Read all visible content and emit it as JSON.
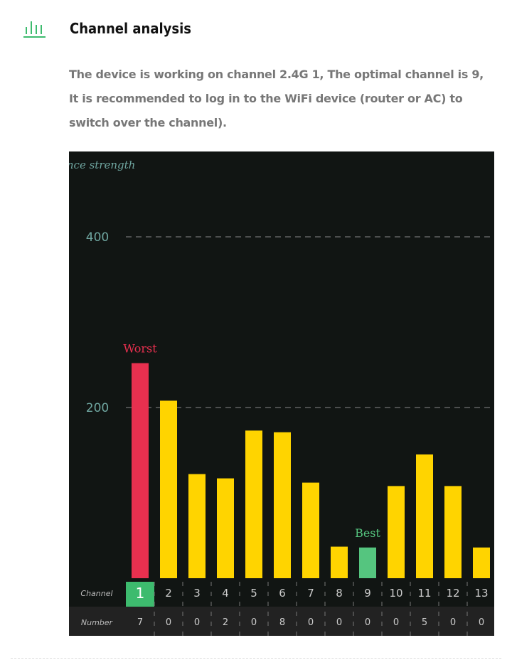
{
  "header": {
    "icon": "bar-chart-icon",
    "title": "Channel analysis"
  },
  "description": "The device is working on channel 2.4G 1, The optimal channel is 9, It is recommended to log in to the WiFi device (router or AC) to switch over the channel).",
  "colors": {
    "accent": "#3dbb6e",
    "worst": "#e8304f",
    "normal": "#ffd400",
    "best": "#55c57f",
    "background": "#111513",
    "axis_text": "#6fa6a0"
  },
  "chart_data": {
    "type": "bar",
    "ylabel": "ence strength",
    "ylim": [
      0,
      400
    ],
    "yticks": [
      200,
      400
    ],
    "grid": true,
    "categories": [
      "1",
      "2",
      "3",
      "4",
      "5",
      "6",
      "7",
      "8",
      "9",
      "10",
      "11",
      "12",
      "13"
    ],
    "values": [
      252,
      208,
      122,
      117,
      173,
      171,
      112,
      37,
      36,
      108,
      145,
      108,
      36
    ],
    "worst_label": "Worst",
    "worst_channel": "1",
    "best_label": "Best",
    "best_channel": "9",
    "current_channel": "1",
    "table": {
      "row1_label": "Channel",
      "row2_label": "Number",
      "numbers": [
        "7",
        "0",
        "0",
        "2",
        "0",
        "8",
        "0",
        "0",
        "0",
        "0",
        "5",
        "0",
        "0"
      ]
    }
  }
}
